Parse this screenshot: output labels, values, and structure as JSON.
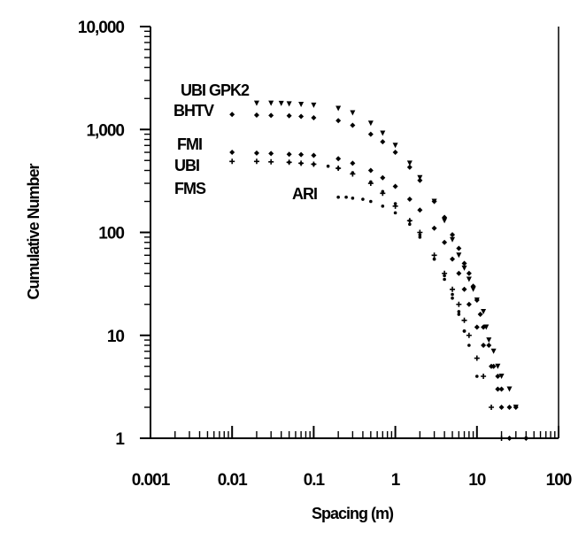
{
  "chart_data": {
    "type": "scatter",
    "title": "",
    "xlabel": "Spacing (m)",
    "ylabel": "Cumulative Number",
    "xscale": "log",
    "yscale": "log",
    "xlim": [
      0.001,
      100
    ],
    "ylim": [
      1,
      10000
    ],
    "x_ticks": [
      {
        "value": 0.001,
        "label": "0.001"
      },
      {
        "value": 0.01,
        "label": "0.01"
      },
      {
        "value": 0.1,
        "label": "0.1"
      },
      {
        "value": 1,
        "label": "1"
      },
      {
        "value": 10,
        "label": "10"
      },
      {
        "value": 100,
        "label": "100"
      }
    ],
    "y_ticks": [
      {
        "value": 1,
        "label": "1"
      },
      {
        "value": 10,
        "label": "10"
      },
      {
        "value": 100,
        "label": "100"
      },
      {
        "value": 1000,
        "label": "1,000"
      },
      {
        "value": 10000,
        "label": "10,000"
      }
    ],
    "grid": false,
    "legend": "inline labels",
    "series": [
      {
        "name": "UBI GPK2",
        "marker": "triangle",
        "color": "#000000",
        "x": [
          0.02,
          0.03,
          0.04,
          0.05,
          0.07,
          0.1,
          0.2,
          0.3,
          0.5,
          0.7,
          1,
          1.5,
          2,
          3,
          4,
          5,
          6,
          7,
          8,
          9,
          10,
          12,
          13,
          14,
          16,
          18,
          20,
          25,
          30
        ],
        "y": [
          1800,
          1800,
          1790,
          1770,
          1750,
          1720,
          1600,
          1450,
          1150,
          920,
          700,
          470,
          340,
          200,
          130,
          85,
          60,
          45,
          35,
          28,
          22,
          17,
          12,
          9,
          7,
          5,
          4,
          3,
          2
        ]
      },
      {
        "name": "BHTV",
        "marker": "diamond",
        "color": "#000000",
        "x": [
          0.01,
          0.02,
          0.03,
          0.05,
          0.07,
          0.1,
          0.2,
          0.3,
          0.5,
          0.7,
          1,
          1.5,
          2,
          3,
          4,
          5,
          6,
          7,
          8,
          9,
          10,
          11,
          12,
          14,
          16,
          18,
          20,
          25,
          30,
          40
        ],
        "y": [
          1400,
          1380,
          1370,
          1360,
          1340,
          1300,
          1220,
          1100,
          900,
          760,
          600,
          430,
          320,
          200,
          140,
          95,
          70,
          50,
          40,
          30,
          22,
          16,
          12,
          8,
          5,
          4,
          3,
          2,
          2,
          1
        ]
      },
      {
        "name": "FMI",
        "marker": "diamond",
        "color": "#000000",
        "x": [
          0.01,
          0.02,
          0.03,
          0.05,
          0.07,
          0.1,
          0.2,
          0.3,
          0.5,
          0.7,
          1,
          1.5,
          2,
          3,
          4,
          5,
          6,
          7,
          8,
          10,
          12,
          15,
          18,
          20,
          25
        ],
        "y": [
          600,
          590,
          585,
          575,
          570,
          560,
          520,
          470,
          400,
          340,
          280,
          210,
          165,
          110,
          80,
          55,
          40,
          28,
          20,
          12,
          8,
          5,
          3,
          2,
          1
        ]
      },
      {
        "name": "UBI",
        "marker": "plus",
        "color": "#000000",
        "x": [
          0.01,
          0.02,
          0.03,
          0.05,
          0.07,
          0.1,
          0.2,
          0.3,
          0.5,
          0.7,
          1,
          1.5,
          2,
          3,
          4,
          5,
          6,
          7,
          8,
          10,
          12,
          15,
          20
        ],
        "y": [
          490,
          490,
          485,
          480,
          470,
          460,
          420,
          370,
          300,
          240,
          180,
          130,
          100,
          60,
          40,
          28,
          20,
          14,
          10,
          6,
          4,
          2,
          1
        ]
      },
      {
        "name": "FMS",
        "marker": "dot",
        "color": "#000000",
        "x": [
          0.05,
          0.07,
          0.1,
          0.15,
          0.2,
          0.3,
          0.5,
          0.7,
          1,
          1.5,
          2,
          3,
          4,
          5,
          6,
          7,
          8,
          10
        ],
        "y": [
          480,
          470,
          460,
          440,
          420,
          380,
          310,
          250,
          190,
          130,
          95,
          55,
          35,
          23,
          16,
          11,
          8,
          4
        ]
      },
      {
        "name": "ARI",
        "marker": "dot",
        "color": "#000000",
        "x": [
          0.2,
          0.25,
          0.3,
          0.4,
          0.5,
          0.7,
          1,
          1.5,
          2,
          3,
          4,
          5,
          6,
          7
        ],
        "y": [
          220,
          220,
          215,
          210,
          200,
          180,
          155,
          120,
          90,
          55,
          38,
          25,
          17,
          11
        ]
      }
    ],
    "annotations": [
      {
        "text": "UBI GPK2",
        "series": "UBI GPK2"
      },
      {
        "text": "BHTV",
        "series": "BHTV"
      },
      {
        "text": "FMI",
        "series": "FMI"
      },
      {
        "text": "UBI",
        "series": "UBI"
      },
      {
        "text": "FMS",
        "series": "FMS"
      },
      {
        "text": "ARI",
        "series": "ARI"
      }
    ]
  }
}
